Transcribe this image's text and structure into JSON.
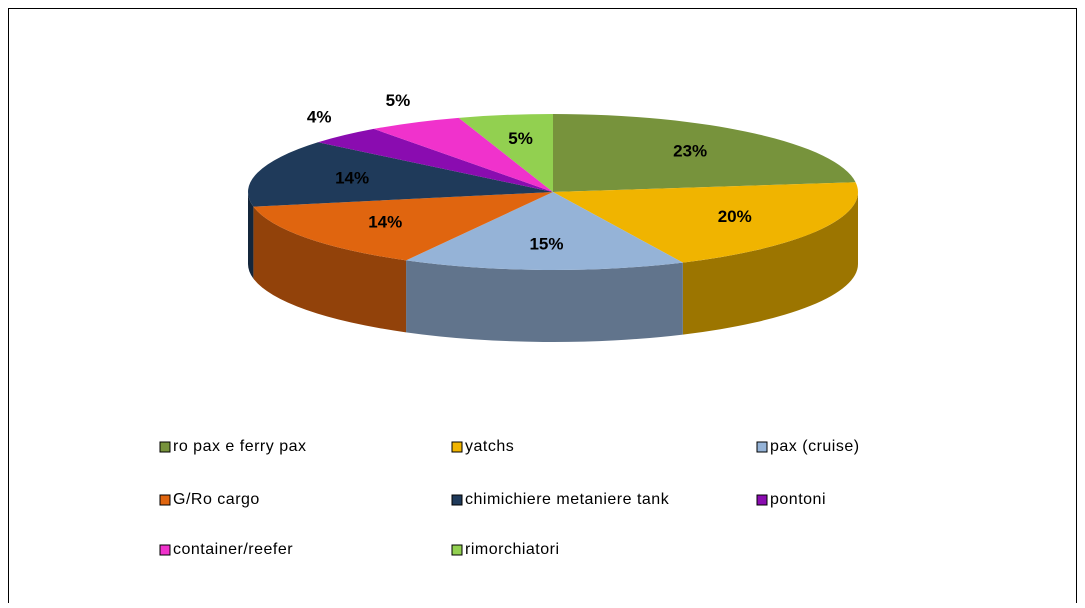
{
  "chart_data": {
    "type": "pie3d",
    "categories": [
      "ro pax e ferry pax",
      "yatchs",
      "pax (cruise)",
      "G/Ro cargo",
      "chimichiere metaniere tank",
      "pontoni",
      "container/reefer",
      "rimorchiatori"
    ],
    "values": [
      23,
      20,
      15,
      14,
      14,
      4,
      5,
      5
    ],
    "value_labels": [
      "23%",
      "20%",
      "15%",
      "14%",
      "14%",
      "4%",
      "5%",
      "5%"
    ],
    "colors": [
      "#77933c",
      "#f0b400",
      "#95b3d7",
      "#e0650f",
      "#1f3a5a",
      "#8a0cb0",
      "#f032cc",
      "#92d050"
    ],
    "legend": "bottom"
  }
}
